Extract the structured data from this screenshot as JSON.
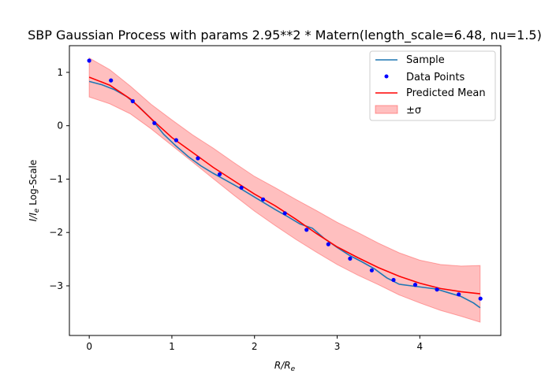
{
  "chart_data": {
    "type": "line",
    "title": "SBP Gaussian Process with params 2.95**2 * Matern(length_scale=6.48, nu=1.5)",
    "xlabel": "R/R",
    "xlabel_sub": "e",
    "ylabel": "I/I",
    "ylabel_sub": "e",
    "ylabel_suffix": " Log-Scale",
    "xlim": [
      -0.24,
      4.98
    ],
    "ylim": [
      -3.93,
      1.5
    ],
    "xticks": [
      0,
      1,
      2,
      3,
      4
    ],
    "yticks": [
      1,
      0,
      -1,
      -2,
      -3
    ],
    "xtick_labels": [
      "0",
      "1",
      "2",
      "3",
      "4"
    ],
    "ytick_labels": [
      "1",
      "0",
      "−1",
      "−2",
      "−3"
    ],
    "grid": false,
    "legend_position": "top-right",
    "legend": [
      {
        "label": "Sample",
        "kind": "line",
        "color": "#1f77b4"
      },
      {
        "label": "Data Points",
        "kind": "marker",
        "color": "#0000ff"
      },
      {
        "label": "Predicted Mean",
        "kind": "line",
        "color": "#ff0000"
      },
      {
        "label": "±σ",
        "kind": "patch",
        "color": "#ff0000"
      }
    ],
    "series": [
      {
        "name": "Sample",
        "kind": "line",
        "color": "#1f77b4",
        "x": [
          0.0,
          0.15,
          0.3,
          0.45,
          0.6,
          0.75,
          0.9,
          1.05,
          1.2,
          1.35,
          1.5,
          1.65,
          1.8,
          1.95,
          2.1,
          2.25,
          2.4,
          2.55,
          2.7,
          2.85,
          3.0,
          3.15,
          3.3,
          3.45,
          3.6,
          3.75,
          3.9,
          4.05,
          4.2,
          4.35,
          4.5,
          4.65,
          4.73
        ],
        "y": [
          0.83,
          0.77,
          0.68,
          0.55,
          0.36,
          0.13,
          -0.16,
          -0.38,
          -0.58,
          -0.75,
          -0.89,
          -1.02,
          -1.15,
          -1.29,
          -1.43,
          -1.57,
          -1.7,
          -1.84,
          -1.92,
          -2.12,
          -2.28,
          -2.43,
          -2.55,
          -2.68,
          -2.85,
          -2.97,
          -3.0,
          -3.03,
          -3.06,
          -3.13,
          -3.2,
          -3.32,
          -3.41
        ]
      },
      {
        "name": "Data Points",
        "kind": "scatter",
        "color": "#0000ff",
        "x": [
          0.0,
          0.263,
          0.526,
          0.789,
          1.052,
          1.315,
          1.578,
          1.841,
          2.104,
          2.367,
          2.63,
          2.893,
          3.156,
          3.419,
          3.682,
          3.945,
          4.208,
          4.471,
          4.734
        ],
        "y": [
          1.22,
          0.85,
          0.46,
          0.05,
          -0.27,
          -0.61,
          -0.91,
          -1.16,
          -1.38,
          -1.64,
          -1.95,
          -2.22,
          -2.49,
          -2.71,
          -2.89,
          -2.98,
          -3.07,
          -3.16,
          -3.24
        ]
      },
      {
        "name": "Predicted Mean",
        "kind": "line",
        "color": "#ff0000",
        "x": [
          0.0,
          0.25,
          0.5,
          0.75,
          1.0,
          1.25,
          1.5,
          1.75,
          2.0,
          2.25,
          2.5,
          2.75,
          3.0,
          3.25,
          3.5,
          3.75,
          4.0,
          4.25,
          4.5,
          4.73
        ],
        "y": [
          0.91,
          0.76,
          0.5,
          0.13,
          -0.22,
          -0.5,
          -0.78,
          -1.03,
          -1.28,
          -1.5,
          -1.75,
          -2.02,
          -2.27,
          -2.47,
          -2.66,
          -2.82,
          -2.95,
          -3.05,
          -3.11,
          -3.15
        ]
      },
      {
        "name": "±σ",
        "kind": "band",
        "color": "#ff0000",
        "x": [
          0.0,
          0.25,
          0.5,
          0.75,
          1.0,
          1.25,
          1.5,
          1.75,
          2.0,
          2.25,
          2.5,
          2.75,
          3.0,
          3.25,
          3.5,
          3.75,
          4.0,
          4.25,
          4.5,
          4.73
        ],
        "upper": [
          1.27,
          1.05,
          0.74,
          0.4,
          0.11,
          -0.17,
          -0.42,
          -0.69,
          -0.95,
          -1.16,
          -1.38,
          -1.59,
          -1.81,
          -2.0,
          -2.2,
          -2.38,
          -2.52,
          -2.6,
          -2.63,
          -2.62
        ],
        "lower": [
          0.54,
          0.41,
          0.22,
          -0.06,
          -0.37,
          -0.68,
          -0.99,
          -1.3,
          -1.6,
          -1.87,
          -2.13,
          -2.37,
          -2.6,
          -2.8,
          -2.98,
          -3.17,
          -3.32,
          -3.46,
          -3.57,
          -3.68
        ]
      }
    ]
  }
}
